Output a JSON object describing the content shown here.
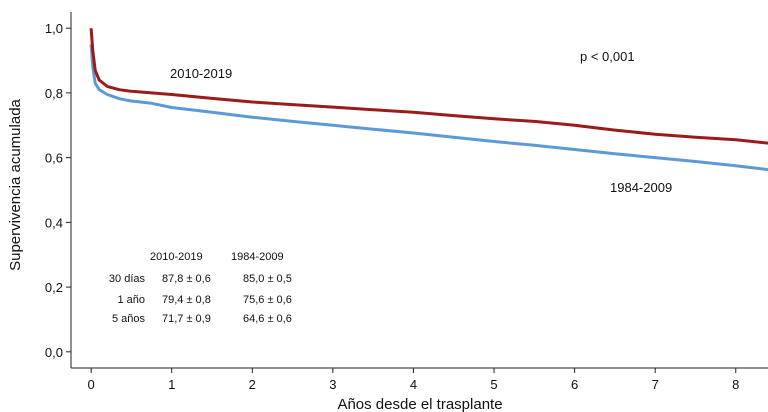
{
  "chart_data": {
    "type": "line",
    "xlabel": "Años desde el trasplante",
    "ylabel": "Supervivencia acumulada",
    "xlim": [
      -0.25,
      8.4
    ],
    "ylim": [
      -0.05,
      1.05
    ],
    "x_ticks": [
      "0",
      "1",
      "2",
      "3",
      "4",
      "5",
      "6",
      "7",
      "8"
    ],
    "y_ticks": [
      "0,0",
      "0,2",
      "0,4",
      "0,6",
      "0,8",
      "1,0"
    ],
    "grid": false,
    "annotation": "p < 0,001",
    "series": [
      {
        "name": "2010-2019",
        "color": "#9b1b1b",
        "x": [
          0,
          0.02,
          0.05,
          0.1,
          0.2,
          0.35,
          0.5,
          0.75,
          1,
          1.5,
          2,
          2.5,
          3,
          3.5,
          4,
          4.5,
          5,
          5.5,
          6,
          6.5,
          7,
          7.5,
          8,
          8.4
        ],
        "y": [
          1.0,
          0.93,
          0.87,
          0.84,
          0.82,
          0.81,
          0.805,
          0.8,
          0.795,
          0.783,
          0.772,
          0.764,
          0.756,
          0.748,
          0.74,
          0.73,
          0.72,
          0.712,
          0.7,
          0.685,
          0.672,
          0.663,
          0.655,
          0.645
        ]
      },
      {
        "name": "1984-2009",
        "color": "#5b9bd5",
        "x": [
          0,
          0.02,
          0.05,
          0.1,
          0.2,
          0.35,
          0.5,
          0.75,
          1,
          1.5,
          2,
          2.5,
          3,
          3.5,
          4,
          4.5,
          5,
          5.5,
          6,
          6.5,
          7,
          7.5,
          8,
          8.4
        ],
        "y": [
          0.95,
          0.88,
          0.83,
          0.81,
          0.795,
          0.782,
          0.775,
          0.768,
          0.755,
          0.74,
          0.725,
          0.712,
          0.7,
          0.688,
          0.676,
          0.663,
          0.65,
          0.638,
          0.625,
          0.612,
          0.6,
          0.588,
          0.575,
          0.563
        ]
      }
    ],
    "table": {
      "headers": [
        "2010-2019",
        "1984-2009"
      ],
      "rows": [
        {
          "label": "30 días",
          "values": [
            "87,8 ± 0,6",
            "85,0 ± 0,5"
          ]
        },
        {
          "label": "1 año",
          "values": [
            "79,4 ± 0,8",
            "75,6 ± 0,6"
          ]
        },
        {
          "label": "5 años",
          "values": [
            "71,7 ± 0,9",
            "64,6 ± 0,6"
          ]
        }
      ]
    }
  }
}
